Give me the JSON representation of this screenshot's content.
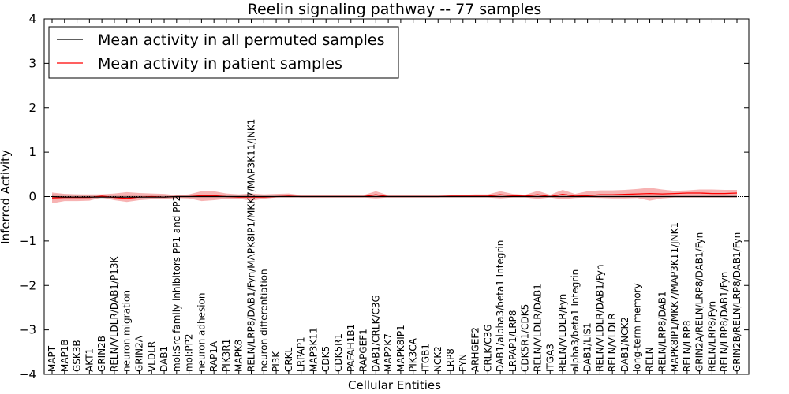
{
  "chart_data": {
    "type": "line",
    "title": "Reelin signaling pathway -- 77 samples",
    "xlabel": "Cellular Entities",
    "ylabel": "Inferred Activity",
    "ylim": [
      -4,
      4
    ],
    "yticks": [
      -4,
      -3,
      -2,
      -1,
      0,
      1,
      2,
      3,
      4
    ],
    "ytick_labels": [
      "−4",
      "−3",
      "−2",
      "−1",
      "0",
      "1",
      "2",
      "3",
      "4"
    ],
    "legend_position": "top-left",
    "categories": [
      "MAPT",
      "MAP1B",
      "GSK3B",
      "AKT1",
      "GRIN2B",
      "RELN/VLDLR/DAB1/P13K",
      "neuron migration",
      "GRIN2A",
      "VLDLR",
      "DAB1",
      "mol:Src family inhibitors PP1 and PP2",
      "mol:PP2",
      "neuron adhesion",
      "RAP1A",
      "PIK3R1",
      "MAPK8",
      "RELN/LRP8/DAB1/Fyn/MAPK8IP1/MKK7/MAP3K11/JNK1",
      "neuron differentiation",
      "PI3K",
      "CRKL",
      "LRPAP1",
      "MAP3K11",
      "CDK5",
      "CDK5R1",
      "PAFAH1B1",
      "RAPGEF1",
      "DAB1/CRLK/C3G",
      "MAP2K7",
      "MAPK8IP1",
      "PIK3CA",
      "ITGB1",
      "NCK2",
      "LRP8",
      "FYN",
      "ARHGEF2",
      "CRLK/C3G",
      "DAB1/alpha3/beta1 Integrin",
      "LRPAP1/LRP8",
      "CDK5R1/CDK5",
      "RELN/VLDLR/DAB1",
      "ITGA3",
      "RELN/VLDLR/Fyn",
      "alpha3/beta1 Integrin",
      "DAB1/LIS1",
      "RELN/VLDLR/DAB1/Fyn",
      "RELN/VLDLR",
      "DAB1/NCK2",
      "long-term memory",
      "RELN",
      "RELN/LRP8/DAB1",
      "MAPK8IP1/MKK7/MAP3K11/JNK1",
      "RELN/LRP8",
      "GRIN2A/RELN/LRP8/DAB1/Fyn",
      "RELN/LRP8/Fyn",
      "RELN/LRP8/DAB1/Fyn",
      "GRIN2B/RELN/LRP8/DAB1/Fyn"
    ],
    "series": [
      {
        "name": "Mean activity in all permuted samples",
        "color": "#000000",
        "band_color": "#bbbbbb",
        "values": [
          0.0,
          -0.01,
          -0.01,
          -0.01,
          -0.01,
          -0.01,
          -0.01,
          -0.01,
          -0.01,
          -0.01,
          0.0,
          0.0,
          0.0,
          0.0,
          0.0,
          0.0,
          0.0,
          0.0,
          0.0,
          0.0,
          0.0,
          0.0,
          0.0,
          0.0,
          0.0,
          0.0,
          0.0,
          0.0,
          0.0,
          0.0,
          0.0,
          0.0,
          0.0,
          0.0,
          0.0,
          0.0,
          0.0,
          0.0,
          0.0,
          0.0,
          0.0,
          0.0,
          0.0,
          0.0,
          0.0,
          0.0,
          0.0,
          0.0,
          0.0,
          0.0,
          0.0,
          0.0,
          0.0,
          0.0,
          0.0,
          0.0
        ],
        "lower": [
          -0.06,
          -0.05,
          -0.05,
          -0.04,
          -0.04,
          -0.04,
          -0.04,
          -0.04,
          -0.04,
          -0.04,
          -0.03,
          -0.03,
          -0.03,
          -0.03,
          -0.03,
          -0.03,
          -0.03,
          -0.03,
          -0.02,
          -0.02,
          -0.02,
          -0.02,
          -0.02,
          -0.02,
          -0.02,
          -0.02,
          -0.02,
          -0.02,
          -0.02,
          -0.02,
          -0.02,
          -0.02,
          -0.02,
          -0.02,
          -0.02,
          -0.02,
          -0.02,
          -0.02,
          -0.02,
          -0.02,
          -0.02,
          -0.02,
          -0.02,
          -0.02,
          -0.02,
          -0.02,
          -0.02,
          -0.02,
          -0.02,
          -0.02,
          -0.02,
          -0.02,
          -0.02,
          -0.02,
          -0.02,
          -0.02
        ],
        "upper": [
          0.06,
          0.05,
          0.05,
          0.04,
          0.04,
          0.04,
          0.04,
          0.04,
          0.04,
          0.04,
          0.03,
          0.03,
          0.03,
          0.03,
          0.03,
          0.03,
          0.03,
          0.03,
          0.02,
          0.02,
          0.02,
          0.02,
          0.02,
          0.02,
          0.02,
          0.02,
          0.02,
          0.02,
          0.02,
          0.02,
          0.02,
          0.02,
          0.02,
          0.02,
          0.02,
          0.02,
          0.02,
          0.02,
          0.02,
          0.02,
          0.02,
          0.02,
          0.02,
          0.02,
          0.02,
          0.02,
          0.02,
          0.02,
          0.02,
          0.02,
          0.02,
          0.02,
          0.02,
          0.02,
          0.02,
          0.02
        ]
      },
      {
        "name": "Mean activity in patient samples",
        "color": "#ff0000",
        "band_color": "#f28080",
        "values": [
          -0.03,
          -0.02,
          -0.02,
          -0.02,
          0.01,
          -0.02,
          -0.04,
          -0.01,
          0.0,
          -0.01,
          0.0,
          0.0,
          0.02,
          0.02,
          0.0,
          -0.01,
          -0.01,
          -0.01,
          0.0,
          0.01,
          0.0,
          0.0,
          0.0,
          0.0,
          0.0,
          0.0,
          0.04,
          0.0,
          0.0,
          0.0,
          0.0,
          0.0,
          0.01,
          0.01,
          0.01,
          0.01,
          0.04,
          0.02,
          0.01,
          0.04,
          0.0,
          0.05,
          0.01,
          0.02,
          0.04,
          0.04,
          0.05,
          0.06,
          0.07,
          0.06,
          0.07,
          0.08,
          0.08,
          0.07,
          0.07,
          0.08
        ],
        "lower": [
          -0.15,
          -0.1,
          -0.1,
          -0.09,
          -0.02,
          -0.08,
          -0.12,
          -0.08,
          -0.06,
          -0.06,
          -0.03,
          -0.04,
          -0.1,
          -0.08,
          -0.05,
          -0.05,
          -0.09,
          -0.05,
          -0.02,
          -0.02,
          -0.02,
          -0.02,
          -0.02,
          -0.02,
          -0.02,
          -0.02,
          -0.04,
          -0.02,
          -0.02,
          -0.02,
          -0.02,
          -0.02,
          -0.02,
          -0.02,
          -0.02,
          -0.02,
          -0.04,
          -0.02,
          -0.02,
          -0.05,
          -0.02,
          -0.06,
          -0.03,
          -0.02,
          -0.03,
          -0.04,
          -0.04,
          -0.03,
          -0.09,
          -0.04,
          -0.02,
          -0.02,
          -0.02,
          -0.02,
          -0.02,
          -0.02
        ],
        "upper": [
          0.09,
          0.06,
          0.05,
          0.05,
          0.05,
          0.07,
          0.1,
          0.08,
          0.07,
          0.06,
          0.03,
          0.05,
          0.12,
          0.12,
          0.07,
          0.05,
          0.07,
          0.05,
          0.06,
          0.07,
          0.03,
          0.03,
          0.03,
          0.03,
          0.03,
          0.03,
          0.12,
          0.03,
          0.03,
          0.03,
          0.03,
          0.03,
          0.04,
          0.04,
          0.05,
          0.05,
          0.12,
          0.06,
          0.04,
          0.13,
          0.04,
          0.15,
          0.06,
          0.12,
          0.14,
          0.14,
          0.15,
          0.17,
          0.2,
          0.16,
          0.13,
          0.14,
          0.16,
          0.16,
          0.15,
          0.15
        ]
      }
    ]
  }
}
